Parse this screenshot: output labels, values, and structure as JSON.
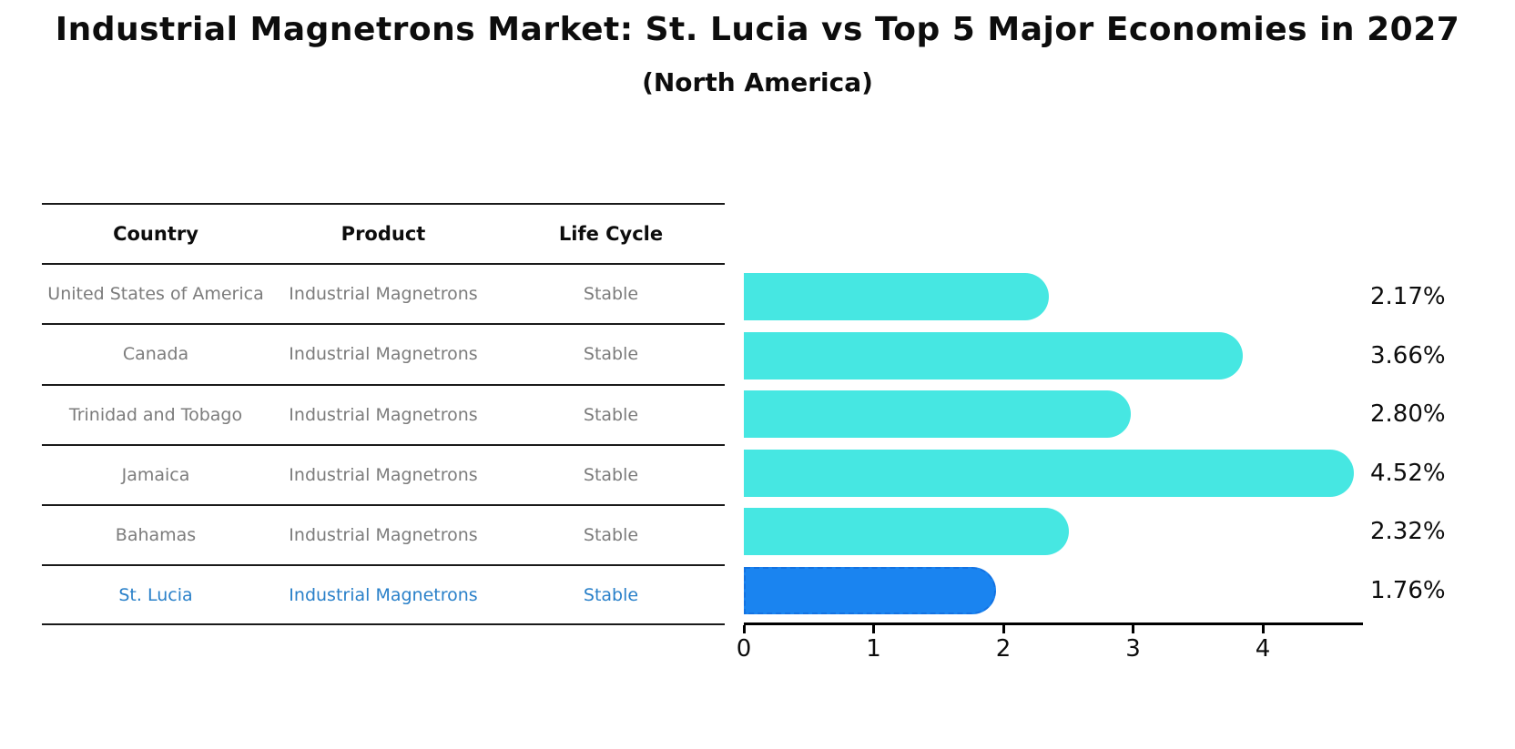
{
  "header": {
    "title": "Industrial Magnetrons Market: St. Lucia vs Top 5 Major Economies in 2027",
    "subtitle": "(North America)"
  },
  "table": {
    "headers": [
      "Country",
      "Product",
      "Life Cycle"
    ],
    "rows": [
      {
        "country": "United States of America",
        "product": "Industrial Magnetrons",
        "life_cycle": "Stable",
        "highlight": false
      },
      {
        "country": "Canada",
        "product": "Industrial Magnetrons",
        "life_cycle": "Stable",
        "highlight": false
      },
      {
        "country": "Trinidad and Tobago",
        "product": "Industrial Magnetrons",
        "life_cycle": "Stable",
        "highlight": false
      },
      {
        "country": "Jamaica",
        "product": "Industrial Magnetrons",
        "life_cycle": "Stable",
        "highlight": false
      },
      {
        "country": "Bahamas",
        "product": "Industrial Magnetrons",
        "life_cycle": "Stable",
        "highlight": false
      },
      {
        "country": "St. Lucia",
        "product": "Industrial Magnetrons",
        "life_cycle": "Stable",
        "highlight": true
      }
    ]
  },
  "chart_data": {
    "type": "bar",
    "orientation": "horizontal",
    "title": "Industrial Magnetrons Market: St. Lucia vs Top 5 Major Economies in 2027",
    "subtitle": "(North America)",
    "categories": [
      "United States of America",
      "Canada",
      "Trinidad and Tobago",
      "Jamaica",
      "Bahamas",
      "St. Lucia"
    ],
    "values": [
      2.17,
      3.66,
      2.8,
      4.52,
      2.32,
      1.76
    ],
    "value_labels": [
      "2.17%",
      "3.66%",
      "2.80%",
      "4.52%",
      "2.32%",
      "1.76%"
    ],
    "highlight_index": 5,
    "xlabel": "",
    "ylabel": "",
    "xlim": [
      0,
      4.75
    ],
    "xticks": [
      0,
      1,
      2,
      3,
      4
    ],
    "grid": false,
    "legend": false
  },
  "colors": {
    "bar": "#46E7E2",
    "highlight_bar": "#1A84F0",
    "highlight_bar_border": "#1372E2",
    "highlight_text": "#2980C9",
    "row_text": "#7C7C7C",
    "axis": "#000000"
  }
}
